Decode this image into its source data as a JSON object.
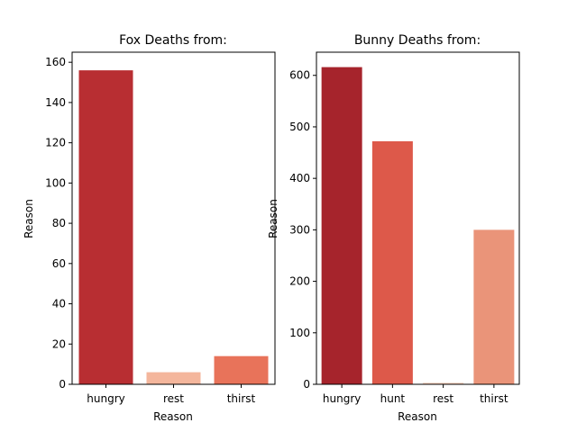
{
  "chart_data": [
    {
      "type": "bar",
      "title": "Fox Deaths from:",
      "xlabel": "Reason",
      "ylabel": "Reason",
      "categories": [
        "hungry",
        "rest",
        "thirst"
      ],
      "values": [
        156,
        6,
        14
      ],
      "colors": [
        "#b82e32",
        "#f4b69c",
        "#e8735a"
      ],
      "ylim": [
        0,
        165
      ],
      "yticks": [
        0,
        20,
        40,
        60,
        80,
        100,
        120,
        140,
        160
      ],
      "grid": false,
      "legend": "none"
    },
    {
      "type": "bar",
      "title": "Bunny Deaths from:",
      "xlabel": "Reason",
      "ylabel": "Reason",
      "categories": [
        "hungry",
        "hunt",
        "rest",
        "thirst"
      ],
      "values": [
        616,
        472,
        3,
        300
      ],
      "colors": [
        "#a6242c",
        "#dd594a",
        "#fbd3bf",
        "#ea9479"
      ],
      "ylim": [
        0,
        645
      ],
      "yticks": [
        0,
        100,
        200,
        300,
        400,
        500,
        600
      ],
      "grid": false,
      "legend": "none"
    }
  ]
}
